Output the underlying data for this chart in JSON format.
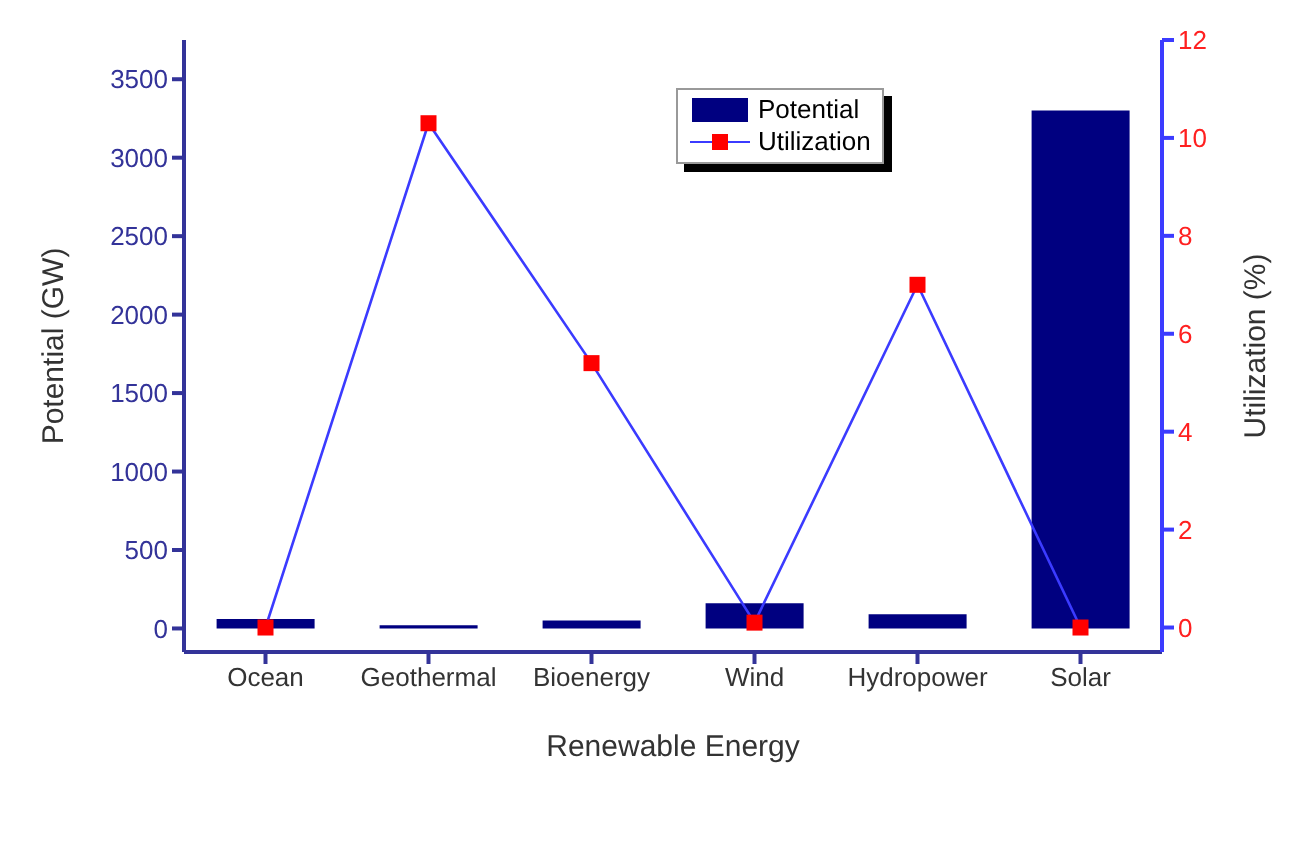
{
  "chart_data": {
    "type": "bar",
    "xlabel": "Renewable Energy",
    "ylabel": "Potential (GW)",
    "y2label": "Utilization (%)",
    "categories": [
      "Ocean",
      "Geothermal",
      "Bioenergy",
      "Wind",
      "Hydropower",
      "Solar"
    ],
    "series": [
      {
        "name": "Potential",
        "color": "#000080",
        "values": [
          60,
          20,
          50,
          160,
          90,
          3300
        ]
      },
      {
        "name": "Utilization",
        "type": "line",
        "axis": "y2",
        "color": "#3b3bff",
        "values": [
          0,
          10.3,
          5.4,
          0.1,
          7.0,
          0
        ]
      }
    ],
    "ylim": [
      -150,
      3750
    ],
    "yticks": [
      0,
      500,
      1000,
      1500,
      2000,
      2500,
      3000,
      3500
    ],
    "y2lim": [
      -0.5,
      12
    ],
    "y2ticks": [
      0,
      2,
      4,
      6,
      8,
      10,
      12
    ],
    "marker": "square",
    "line_style": "solid",
    "grid": false,
    "legend": "top"
  }
}
